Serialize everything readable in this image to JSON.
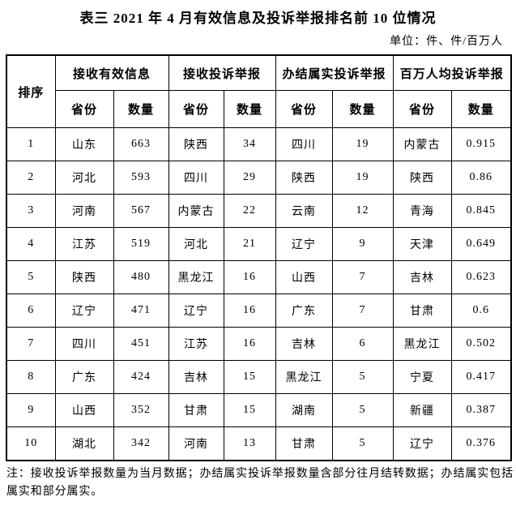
{
  "title": "表三 2021 年 4 月有效信息及投诉举报排名前 10 位情况",
  "unit_label": "单位：件、件/百万人",
  "table": {
    "rank_header": "排序",
    "groups": [
      {
        "label": "接收有效信息"
      },
      {
        "label": "接收投诉举报"
      },
      {
        "label": "办结属实投诉举报"
      },
      {
        "label": "百万人均投诉举报"
      }
    ],
    "sub_headers": {
      "province": "省份",
      "quantity": "数量"
    },
    "rows": [
      {
        "rank": "1",
        "cells": [
          "山东",
          "663",
          "陕西",
          "34",
          "四川",
          "19",
          "内蒙古",
          "0.915"
        ]
      },
      {
        "rank": "2",
        "cells": [
          "河北",
          "593",
          "四川",
          "29",
          "陕西",
          "19",
          "陕西",
          "0.86"
        ]
      },
      {
        "rank": "3",
        "cells": [
          "河南",
          "567",
          "内蒙古",
          "22",
          "云南",
          "12",
          "青海",
          "0.845"
        ]
      },
      {
        "rank": "4",
        "cells": [
          "江苏",
          "519",
          "河北",
          "21",
          "辽宁",
          "9",
          "天津",
          "0.649"
        ]
      },
      {
        "rank": "5",
        "cells": [
          "陕西",
          "480",
          "黑龙江",
          "16",
          "山西",
          "7",
          "吉林",
          "0.623"
        ]
      },
      {
        "rank": "6",
        "cells": [
          "辽宁",
          "471",
          "辽宁",
          "16",
          "广东",
          "7",
          "甘肃",
          "0.6"
        ]
      },
      {
        "rank": "7",
        "cells": [
          "四川",
          "451",
          "江苏",
          "16",
          "吉林",
          "6",
          "黑龙江",
          "0.502"
        ]
      },
      {
        "rank": "8",
        "cells": [
          "广东",
          "424",
          "吉林",
          "15",
          "黑龙江",
          "5",
          "宁夏",
          "0.417"
        ]
      },
      {
        "rank": "9",
        "cells": [
          "山西",
          "352",
          "甘肃",
          "15",
          "湖南",
          "5",
          "新疆",
          "0.387"
        ]
      },
      {
        "rank": "10",
        "cells": [
          "湖北",
          "342",
          "河南",
          "13",
          "甘肃",
          "5",
          "辽宁",
          "0.376"
        ]
      }
    ]
  },
  "footnote": "注：接收投诉举报数量为当月数据；办结属实投诉举报数量含部分往月结转数据；办结属实包括属实和部分属实。",
  "colors": {
    "text": "#000000",
    "border": "#000000",
    "background": "#ffffff"
  }
}
